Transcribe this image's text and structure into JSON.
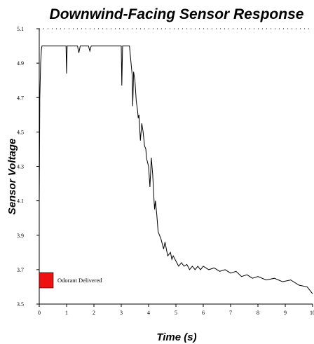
{
  "chart_data": {
    "type": "line",
    "title": "Downwind-Facing Sensor Response",
    "xlabel": "Time (s)",
    "ylabel": "Sensor Voltage",
    "xlim": [
      0,
      10
    ],
    "ylim": [
      3.5,
      5.1
    ],
    "x_ticks": [
      "0",
      "1",
      "2",
      "3",
      "4",
      "5",
      "6",
      "7",
      "8",
      "9",
      "10"
    ],
    "y_ticks": [
      "3.5",
      "3.7",
      "3.9",
      "4.1",
      "4.3",
      "4.5",
      "4.7",
      "4.9",
      "5.1"
    ],
    "grid": false,
    "legend": [
      {
        "label": "Odorant Delivered",
        "color": "#ee1111"
      }
    ],
    "series": [
      {
        "color": "#000000",
        "x": [
          0,
          0.02,
          0.05,
          0.08,
          0.1,
          0.15,
          0.2,
          0.5,
          0.98,
          1.0,
          1.02,
          1.05,
          1.4,
          1.45,
          1.5,
          1.8,
          1.85,
          1.9,
          2.5,
          3.0,
          3.02,
          3.05,
          3.1,
          3.3,
          3.4,
          3.42,
          3.45,
          3.5,
          3.52,
          3.55,
          3.6,
          3.62,
          3.65,
          3.7,
          3.75,
          3.8,
          3.85,
          3.9,
          3.92,
          3.95,
          4.0,
          4.05,
          4.1,
          4.15,
          4.2,
          4.22,
          4.25,
          4.3,
          4.35,
          4.4,
          4.45,
          4.5,
          4.55,
          4.6,
          4.7,
          4.8,
          4.85,
          4.9,
          5.0,
          5.1,
          5.2,
          5.3,
          5.4,
          5.5,
          5.6,
          5.7,
          5.8,
          5.9,
          6.0,
          6.2,
          6.4,
          6.6,
          6.8,
          7.0,
          7.2,
          7.4,
          7.6,
          7.8,
          8.0,
          8.3,
          8.6,
          8.9,
          9.2,
          9.5,
          9.8,
          10.0
        ],
        "values": [
          4.08,
          4.7,
          4.9,
          4.98,
          5.0,
          5.0,
          5.0,
          5.0,
          5.0,
          4.84,
          5.0,
          5.0,
          5.0,
          4.96,
          5.0,
          5.0,
          4.97,
          5.0,
          5.0,
          5.0,
          4.77,
          5.0,
          5.0,
          5.0,
          4.83,
          4.65,
          4.85,
          4.8,
          4.75,
          4.68,
          4.62,
          4.58,
          4.6,
          4.45,
          4.55,
          4.5,
          4.42,
          4.4,
          4.35,
          4.33,
          4.3,
          4.18,
          4.35,
          4.25,
          4.1,
          4.05,
          4.1,
          4.02,
          3.92,
          3.9,
          3.88,
          3.85,
          3.82,
          3.86,
          3.78,
          3.8,
          3.76,
          3.78,
          3.75,
          3.72,
          3.74,
          3.72,
          3.73,
          3.7,
          3.72,
          3.7,
          3.72,
          3.7,
          3.72,
          3.7,
          3.71,
          3.69,
          3.7,
          3.68,
          3.69,
          3.66,
          3.67,
          3.65,
          3.66,
          3.64,
          3.65,
          3.63,
          3.64,
          3.61,
          3.6,
          3.56
        ]
      }
    ]
  }
}
